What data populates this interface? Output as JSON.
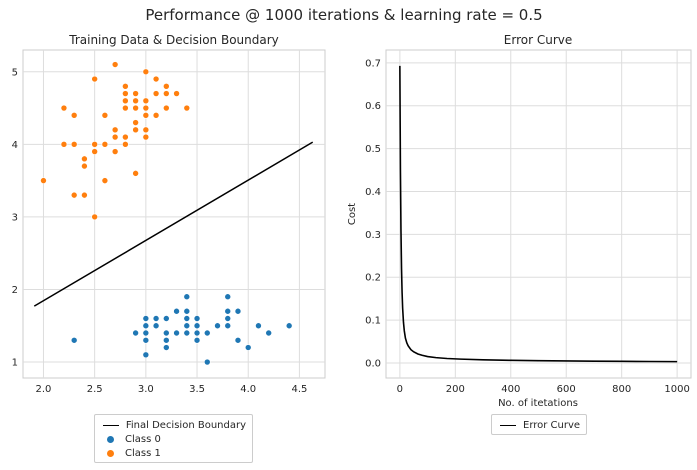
{
  "suptitle": "Performance @ 1000 iterations & learning rate = 0.5",
  "chart_data": [
    {
      "type": "scatter",
      "title": "Training Data & Decision Boundary",
      "xlabel": "",
      "ylabel": "",
      "xlim": [
        1.8,
        4.75
      ],
      "ylim": [
        0.78,
        5.3
      ],
      "xticks": [
        2.0,
        2.5,
        3.0,
        3.5,
        4.0,
        4.5
      ],
      "yticks": [
        1,
        2,
        3,
        4,
        5
      ],
      "xtick_labels": [
        "2.0",
        "2.5",
        "3.0",
        "3.5",
        "4.0",
        "4.5"
      ],
      "ytick_labels": [
        "1",
        "2",
        "3",
        "4",
        "5"
      ],
      "grid": true,
      "legend_position": "below",
      "series": [
        {
          "name": "Class 0",
          "color": "#1f77b4",
          "points": [
            [
              2.3,
              1.3
            ],
            [
              2.9,
              1.4
            ],
            [
              3.0,
              1.1
            ],
            [
              3.0,
              1.3
            ],
            [
              3.0,
              1.4
            ],
            [
              3.0,
              1.4
            ],
            [
              3.0,
              1.5
            ],
            [
              3.0,
              1.6
            ],
            [
              3.1,
              1.5
            ],
            [
              3.1,
              1.6
            ],
            [
              3.2,
              1.2
            ],
            [
              3.2,
              1.3
            ],
            [
              3.2,
              1.4
            ],
            [
              3.2,
              1.6
            ],
            [
              3.3,
              1.4
            ],
            [
              3.3,
              1.7
            ],
            [
              3.4,
              1.4
            ],
            [
              3.4,
              1.5
            ],
            [
              3.4,
              1.6
            ],
            [
              3.4,
              1.7
            ],
            [
              3.4,
              1.9
            ],
            [
              3.5,
              1.3
            ],
            [
              3.5,
              1.4
            ],
            [
              3.5,
              1.5
            ],
            [
              3.5,
              1.6
            ],
            [
              3.6,
              1.0
            ],
            [
              3.6,
              1.4
            ],
            [
              3.7,
              1.5
            ],
            [
              3.8,
              1.5
            ],
            [
              3.8,
              1.6
            ],
            [
              3.8,
              1.7
            ],
            [
              3.8,
              1.9
            ],
            [
              3.9,
              1.3
            ],
            [
              3.9,
              1.7
            ],
            [
              4.0,
              1.2
            ],
            [
              4.1,
              1.5
            ],
            [
              4.2,
              1.4
            ],
            [
              4.4,
              1.5
            ]
          ]
        },
        {
          "name": "Class 1",
          "color": "#ff7f0e",
          "points": [
            [
              2.0,
              3.5
            ],
            [
              2.2,
              4.0
            ],
            [
              2.2,
              4.5
            ],
            [
              2.3,
              3.3
            ],
            [
              2.3,
              4.0
            ],
            [
              2.3,
              4.4
            ],
            [
              2.4,
              3.3
            ],
            [
              2.4,
              3.7
            ],
            [
              2.4,
              3.8
            ],
            [
              2.5,
              3.0
            ],
            [
              2.5,
              3.9
            ],
            [
              2.5,
              4.0
            ],
            [
              2.5,
              4.9
            ],
            [
              2.6,
              3.5
            ],
            [
              2.6,
              4.0
            ],
            [
              2.6,
              4.4
            ],
            [
              2.7,
              3.9
            ],
            [
              2.7,
              4.1
            ],
            [
              2.7,
              4.2
            ],
            [
              2.7,
              5.1
            ],
            [
              2.8,
              4.0
            ],
            [
              2.8,
              4.1
            ],
            [
              2.8,
              4.5
            ],
            [
              2.8,
              4.6
            ],
            [
              2.8,
              4.7
            ],
            [
              2.8,
              4.8
            ],
            [
              2.9,
              3.6
            ],
            [
              2.9,
              4.2
            ],
            [
              2.9,
              4.3
            ],
            [
              2.9,
              4.5
            ],
            [
              2.9,
              4.6
            ],
            [
              2.9,
              4.7
            ],
            [
              3.0,
              4.1
            ],
            [
              3.0,
              4.2
            ],
            [
              3.0,
              4.4
            ],
            [
              3.0,
              4.5
            ],
            [
              3.0,
              4.6
            ],
            [
              3.0,
              5.0
            ],
            [
              3.1,
              4.4
            ],
            [
              3.1,
              4.7
            ],
            [
              3.1,
              4.9
            ],
            [
              3.2,
              4.5
            ],
            [
              3.2,
              4.7
            ],
            [
              3.2,
              4.8
            ],
            [
              3.3,
              4.7
            ],
            [
              3.4,
              4.5
            ]
          ]
        },
        {
          "name": "Final Decision Boundary",
          "type": "line",
          "color": "#000000",
          "points": [
            [
              1.91,
              1.77
            ],
            [
              4.63,
              4.03
            ]
          ]
        }
      ]
    },
    {
      "type": "line",
      "title": "Error Curve",
      "xlabel": "No. of itetations",
      "ylabel": "Cost",
      "xlim": [
        -50,
        1050
      ],
      "ylim": [
        -0.035,
        0.73
      ],
      "xticks": [
        0,
        200,
        400,
        600,
        800,
        1000
      ],
      "yticks": [
        0.0,
        0.1,
        0.2,
        0.3,
        0.4,
        0.5,
        0.6,
        0.7
      ],
      "xtick_labels": [
        "0",
        "200",
        "400",
        "600",
        "800",
        "1000"
      ],
      "ytick_labels": [
        "0.0",
        "0.1",
        "0.2",
        "0.3",
        "0.4",
        "0.5",
        "0.6",
        "0.7"
      ],
      "grid": true,
      "legend_position": "below",
      "series": [
        {
          "name": "Error Curve",
          "color": "#000000",
          "x": [
            0,
            2,
            4,
            6,
            8,
            10,
            13,
            16,
            20,
            25,
            30,
            40,
            50,
            65,
            80,
            100,
            130,
            170,
            220,
            300,
            400,
            500,
            600,
            700,
            800,
            900,
            1000
          ],
          "y": [
            0.693,
            0.45,
            0.31,
            0.22,
            0.165,
            0.128,
            0.095,
            0.075,
            0.058,
            0.047,
            0.04,
            0.031,
            0.026,
            0.021,
            0.018,
            0.015,
            0.0125,
            0.0105,
            0.009,
            0.0075,
            0.0062,
            0.0053,
            0.0047,
            0.0042,
            0.0038,
            0.0035,
            0.0032
          ]
        }
      ]
    }
  ],
  "legends": {
    "left": {
      "boundary": "Final Decision Boundary",
      "class0": "Class 0",
      "class1": "Class 1"
    },
    "right": {
      "curve": "Error Curve"
    }
  },
  "colors": {
    "class0": "#1f77b4",
    "class1": "#ff7f0e",
    "line": "#000000",
    "grid": "#dddddd",
    "spine": "#cccccc"
  }
}
